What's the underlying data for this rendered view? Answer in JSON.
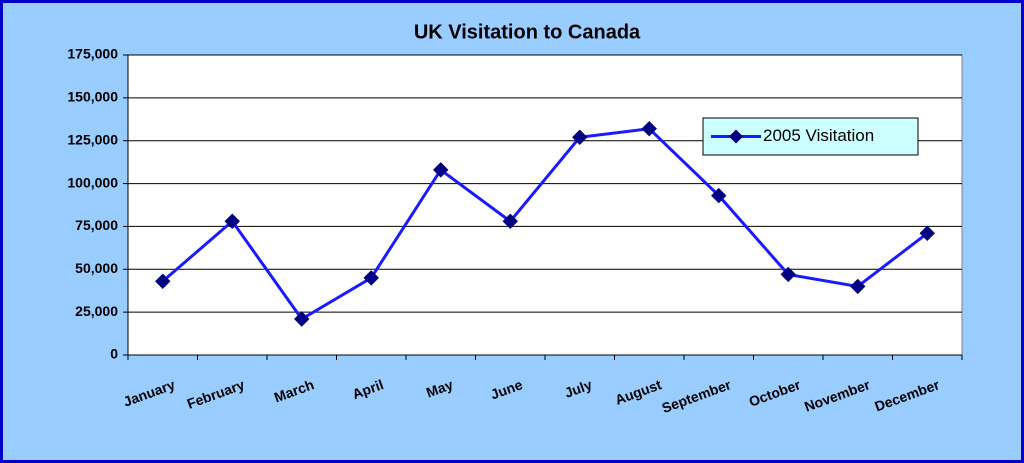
{
  "chart_data": {
    "type": "line",
    "title": "UK Visitation to Canada",
    "categories": [
      "January",
      "February",
      "March",
      "April",
      "May",
      "June",
      "July",
      "August",
      "September",
      "October",
      "November",
      "December"
    ],
    "series": [
      {
        "name": "2005 Visitation",
        "color": "#1a1aff",
        "marker_color": "#000080",
        "values": [
          43000,
          78000,
          21000,
          45000,
          108000,
          78000,
          127000,
          132000,
          93000,
          47000,
          40000,
          71000
        ]
      }
    ],
    "ylim": [
      0,
      175000
    ],
    "yticks": [
      0,
      {
        "value": 25000,
        "label": "25,000"
      },
      {
        "value": 50000,
        "label": "50,000"
      },
      {
        "value": 75000,
        "label": "75,000"
      },
      {
        "value": 100000,
        "label": "100,000"
      },
      {
        "value": 125000,
        "label": "125,000"
      },
      {
        "value": 150000,
        "label": "150,000"
      },
      {
        "value": 175000,
        "label": "175,000"
      }
    ],
    "grid": true,
    "legend": "upper right"
  }
}
